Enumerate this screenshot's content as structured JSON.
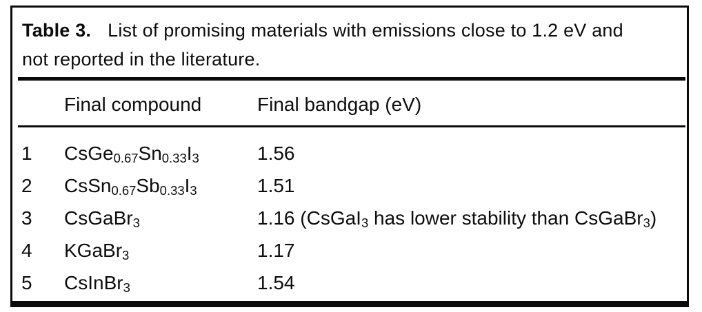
{
  "figure": {
    "caption": {
      "label": "Table 3.",
      "line1": "List of promising materials with emissions close to 1.2 eV and",
      "line2": "not reported in the literature."
    },
    "header": {
      "compound": "Final compound",
      "bandgap": "Final bandgap (eV)"
    },
    "rows": [
      {
        "num": "1",
        "compound": [
          {
            "t": "CsGe",
            "sub": false
          },
          {
            "t": "0.67",
            "sub": true
          },
          {
            "t": "Sn",
            "sub": false
          },
          {
            "t": "0.33",
            "sub": true
          },
          {
            "t": "I",
            "sub": false
          },
          {
            "t": "3",
            "sub": true
          }
        ],
        "bandgap": [
          {
            "t": "1.56",
            "sub": false
          }
        ]
      },
      {
        "num": "2",
        "compound": [
          {
            "t": "CsSn",
            "sub": false
          },
          {
            "t": "0.67",
            "sub": true
          },
          {
            "t": "Sb",
            "sub": false
          },
          {
            "t": "0.33",
            "sub": true
          },
          {
            "t": "I",
            "sub": false
          },
          {
            "t": "3",
            "sub": true
          }
        ],
        "bandgap": [
          {
            "t": "1.51",
            "sub": false
          }
        ]
      },
      {
        "num": "3",
        "compound": [
          {
            "t": "CsGaBr",
            "sub": false
          },
          {
            "t": "3",
            "sub": true
          }
        ],
        "bandgap": [
          {
            "t": "1.16 (CsGaI",
            "sub": false
          },
          {
            "t": "3",
            "sub": true
          },
          {
            "t": " has lower stability than CsGaBr",
            "sub": false
          },
          {
            "t": "3",
            "sub": true
          },
          {
            "t": ")",
            "sub": false
          }
        ]
      },
      {
        "num": "4",
        "compound": [
          {
            "t": "KGaBr",
            "sub": false
          },
          {
            "t": "3",
            "sub": true
          }
        ],
        "bandgap": [
          {
            "t": "1.17",
            "sub": false
          }
        ]
      },
      {
        "num": "5",
        "compound": [
          {
            "t": "CsInBr",
            "sub": false
          },
          {
            "t": "3",
            "sub": true
          }
        ],
        "bandgap": [
          {
            "t": "1.54",
            "sub": false
          }
        ]
      }
    ],
    "colors": {
      "text": "#0d0d0d",
      "rule": "#0a0a0a",
      "background": "#ffffff"
    }
  }
}
